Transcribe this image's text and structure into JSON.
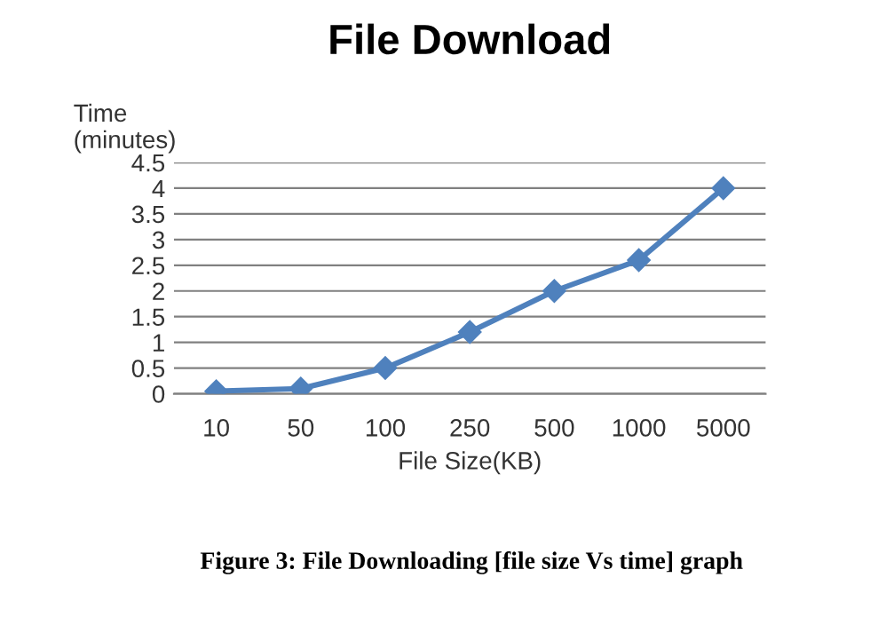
{
  "chart_data": {
    "type": "line",
    "title": "File Download",
    "xlabel": "File Size(KB)",
    "ylabel": "Time\n(minutes)",
    "categories": [
      "10",
      "50",
      "100",
      "250",
      "500",
      "1000",
      "5000"
    ],
    "series": [
      {
        "color": "#4f81bd",
        "values": [
          0.05,
          0.1,
          0.5,
          1.2,
          2.0,
          2.6,
          4.0
        ]
      }
    ],
    "ylim": [
      0,
      4.5
    ],
    "yticks": [
      0,
      0.5,
      1,
      1.5,
      2,
      2.5,
      3,
      3.5,
      4,
      4.5
    ],
    "grid": "y",
    "marker": "diamond",
    "line_style": "solid",
    "legend": false,
    "annotations": [
      "Figure 3: File Downloading [file size Vs time] graph"
    ]
  }
}
